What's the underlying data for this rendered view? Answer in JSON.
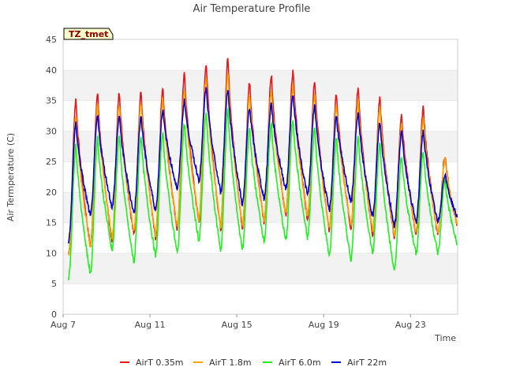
{
  "chart_data": {
    "type": "line",
    "title": "Air Temperature Profile",
    "xlabel": "Time",
    "ylabel": "Air Termperature (C)",
    "tag": "TZ_tmet",
    "ylim": [
      0,
      45
    ],
    "yticks": [
      0,
      5,
      10,
      15,
      20,
      25,
      30,
      35,
      40,
      45
    ],
    "xlim": [
      "Aug 7",
      "Aug 25 4h"
    ],
    "xticks": [
      "Aug 7",
      "Aug 11",
      "Aug 15",
      "Aug 19",
      "Aug 23"
    ],
    "grid": "alternating horizontal bands",
    "legend_position": "bottom",
    "x_days": [
      "Aug 7",
      "Aug 8",
      "Aug 9",
      "Aug 10",
      "Aug 11",
      "Aug 12",
      "Aug 13",
      "Aug 14",
      "Aug 15",
      "Aug 16",
      "Aug 17",
      "Aug 18",
      "Aug 19",
      "Aug 20",
      "Aug 21",
      "Aug 22",
      "Aug 23",
      "Aug 24"
    ],
    "series": [
      {
        "name": "AirT 0.35m",
        "color": "#e31a1c",
        "daily_max": [
          35.3,
          36.3,
          36.5,
          36.5,
          37.3,
          39.5,
          41.3,
          42.0,
          38.2,
          39.2,
          40.0,
          38.5,
          36.2,
          37.3,
          35.6,
          32.8,
          34.0,
          26.0
        ],
        "daily_min": [
          10.0,
          11.0,
          11.8,
          13.0,
          12.5,
          14.0,
          15.0,
          14.0,
          14.0,
          15.0,
          16.0,
          15.5,
          13.5,
          14.0,
          13.0,
          12.5,
          13.0
        ]
      },
      {
        "name": "AirT 1.8m",
        "color": "#f5a400",
        "daily_max": [
          32.5,
          34.2,
          34.5,
          34.8,
          35.2,
          37.0,
          38.8,
          39.5,
          36.0,
          36.5,
          37.5,
          36.0,
          34.2,
          35.0,
          33.8,
          31.0,
          32.2,
          25.5
        ],
        "daily_min": [
          9.5,
          11.0,
          12.5,
          13.5,
          13.0,
          14.5,
          15.5,
          14.5,
          14.5,
          15.5,
          16.5,
          16.0,
          14.0,
          14.5,
          13.5,
          13.0,
          13.5
        ]
      },
      {
        "name": "AirT 6.0m",
        "color": "#22ee22",
        "daily_max": [
          27.8,
          29.0,
          29.2,
          29.3,
          30.0,
          31.3,
          33.0,
          33.5,
          30.5,
          31.3,
          32.0,
          30.5,
          29.0,
          29.3,
          28.2,
          25.8,
          26.8,
          22.0
        ],
        "daily_min": [
          6.0,
          6.5,
          10.5,
          8.5,
          9.5,
          10.0,
          12.0,
          10.5,
          10.5,
          12.0,
          12.0,
          12.5,
          9.5,
          9.0,
          10.0,
          7.0,
          10.0
        ]
      },
      {
        "name": "AirT 22m",
        "color": "#0000cc",
        "daily_max": [
          31.3,
          32.5,
          32.5,
          32.5,
          33.5,
          35.0,
          37.0,
          37.0,
          34.0,
          34.5,
          36.0,
          34.2,
          32.5,
          33.0,
          31.5,
          30.0,
          30.0,
          23.0
        ],
        "daily_min": [
          12.0,
          16.0,
          17.5,
          16.5,
          17.0,
          20.5,
          22.0,
          20.0,
          18.0,
          19.0,
          20.5,
          19.5,
          17.0,
          18.5,
          16.0,
          14.5,
          15.0
        ]
      }
    ]
  }
}
